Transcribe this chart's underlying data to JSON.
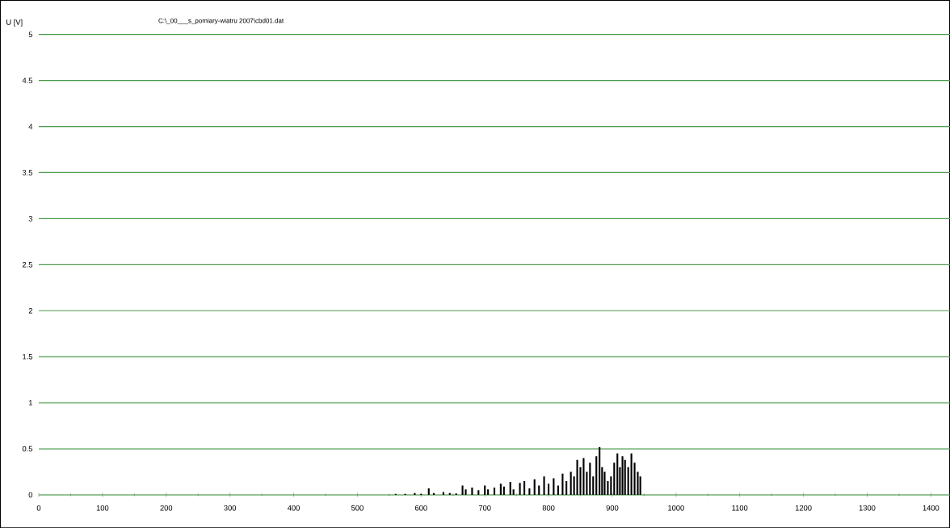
{
  "chart_data": {
    "type": "bar",
    "title": "C:\\_00___s_pomiary-wiatru 2007\\cbd01.dat",
    "ylabel": "U [V]",
    "x": [
      560,
      575,
      590,
      600,
      612,
      620,
      635,
      645,
      655,
      665,
      670,
      680,
      690,
      700,
      705,
      715,
      725,
      730,
      740,
      745,
      755,
      762,
      770,
      778,
      785,
      793,
      800,
      808,
      815,
      822,
      828,
      835,
      840,
      845,
      850,
      855,
      860,
      865,
      870,
      875,
      880,
      884,
      888,
      893,
      898,
      903,
      908,
      912,
      916,
      920,
      925,
      930,
      935,
      940,
      944
    ],
    "values": [
      0.01,
      0.01,
      0.02,
      0.01,
      0.07,
      0.02,
      0.03,
      0.02,
      0.015,
      0.1,
      0.06,
      0.08,
      0.05,
      0.1,
      0.06,
      0.08,
      0.12,
      0.09,
      0.14,
      0.06,
      0.13,
      0.15,
      0.07,
      0.17,
      0.1,
      0.2,
      0.12,
      0.18,
      0.1,
      0.23,
      0.15,
      0.25,
      0.2,
      0.38,
      0.3,
      0.4,
      0.25,
      0.35,
      0.2,
      0.42,
      0.52,
      0.3,
      0.25,
      0.15,
      0.2,
      0.35,
      0.45,
      0.3,
      0.42,
      0.38,
      0.3,
      0.45,
      0.35,
      0.25,
      0.2
    ],
    "color": "#000000",
    "xlim": [
      0,
      1430
    ],
    "xticks": [
      0,
      100,
      200,
      300,
      400,
      500,
      600,
      700,
      800,
      900,
      1000,
      1100,
      1200,
      1300,
      1400
    ],
    "ylim": [
      0,
      5
    ],
    "yticks": [
      0,
      0.5,
      1,
      1.5,
      2,
      2.5,
      3,
      3.5,
      4,
      4.5,
      5
    ],
    "grid": "y"
  }
}
